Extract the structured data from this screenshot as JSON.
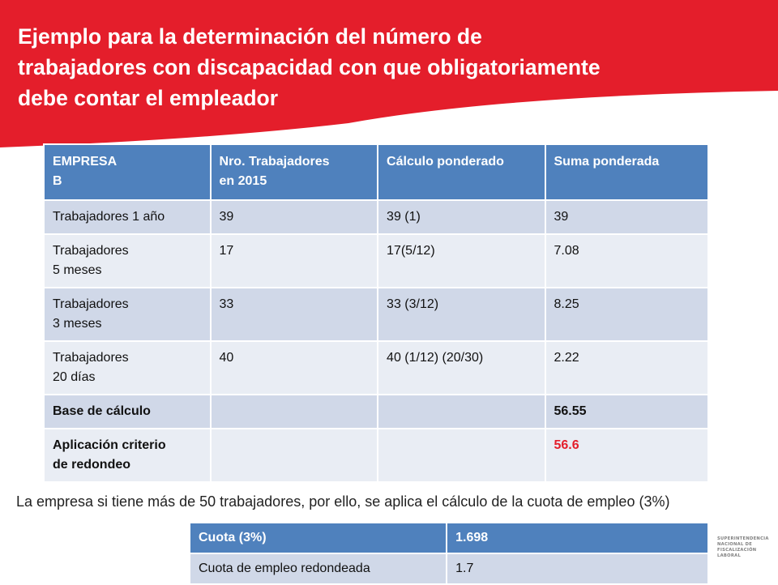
{
  "title_lines": [
    "Ejemplo para la determinación del número de",
    "trabajadores con discapacidad con que obligatoriamente",
    "debe contar el empleador"
  ],
  "main_table": {
    "headers": [
      "EMPRESA\nB",
      "Nro. Trabajadores\nen 2015",
      "Cálculo ponderado",
      "Suma ponderada"
    ],
    "rows": [
      [
        "Trabajadores 1 año",
        "39",
        "39 (1)",
        "39"
      ],
      [
        "Trabajadores\n5 meses",
        "17",
        "17(5/12)",
        "7.08"
      ],
      [
        "Trabajadores\n3 meses",
        "33",
        "33 (3/12)",
        "8.25"
      ],
      [
        "Trabajadores\n20 días",
        "40",
        "40 (1/12) (20/30)",
        "2.22"
      ],
      [
        "Base de cálculo",
        "",
        "",
        "56.55"
      ],
      [
        "Aplicación criterio\nde redondeo",
        "",
        "",
        "56.6"
      ]
    ]
  },
  "note": "La empresa si tiene más de 50 trabajadores, por ello, se aplica el cálculo de la cuota de empleo (3%)",
  "quota_table": {
    "rows": [
      [
        "Cuota (3%)",
        "1.698"
      ],
      [
        "Cuota de empleo redondeada",
        "1.7"
      ]
    ]
  },
  "logo": {
    "lines": [
      "SUPERINTENDENCIA",
      "NACIONAL DE",
      "FISCALIZACIÓN",
      "LABORAL"
    ]
  },
  "colors": {
    "banner": "#e41e2b",
    "table_header": "#4f81bd",
    "row_dark": "#d0d8e8",
    "row_light": "#e9edf4",
    "highlight": "#e41e2b"
  }
}
